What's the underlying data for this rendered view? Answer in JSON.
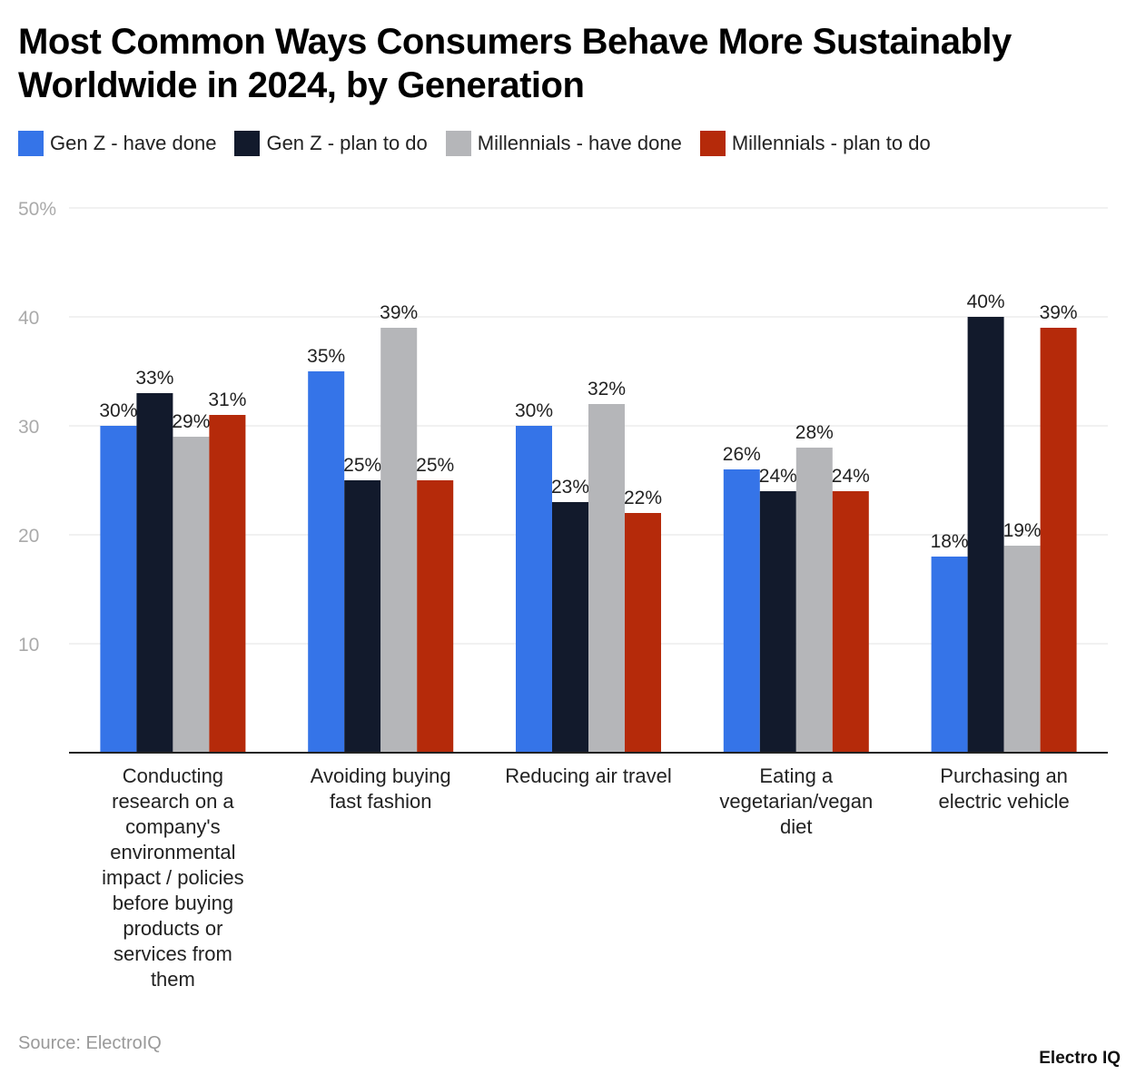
{
  "chart_data": {
    "type": "bar",
    "title": "Most Common Ways Consumers Behave More Sustainably Worldwide in 2024, by Generation",
    "categories": [
      [
        "Conducting",
        "research on a",
        "company's",
        "environmental",
        "impact / policies",
        "before buying",
        "products or",
        "services from",
        "them"
      ],
      [
        "Avoiding buying",
        "fast fashion"
      ],
      [
        "Reducing air travel"
      ],
      [
        "Eating a",
        "vegetarian/vegan",
        "diet"
      ],
      [
        "Purchasing an",
        "electric vehicle"
      ]
    ],
    "series": [
      {
        "name": "Gen Z - have done",
        "color": "#3574e8",
        "values": [
          30,
          35,
          30,
          26,
          18
        ]
      },
      {
        "name": "Gen Z - plan to do",
        "color": "#121a2c",
        "values": [
          33,
          25,
          23,
          24,
          40
        ]
      },
      {
        "name": "Millennials - have done",
        "color": "#b5b6b9",
        "values": [
          29,
          39,
          32,
          28,
          19
        ]
      },
      {
        "name": "Millennials - plan to do",
        "color": "#b52a0a",
        "values": [
          31,
          25,
          22,
          24,
          39
        ]
      }
    ],
    "ylim": [
      0,
      50
    ],
    "yticks": [
      "",
      "10",
      "20",
      "30",
      "40",
      "50%"
    ],
    "value_suffix": "%",
    "grid": true,
    "legend_position": "top-left"
  },
  "source": "Source: ElectroIQ",
  "logo": "Electro IQ"
}
